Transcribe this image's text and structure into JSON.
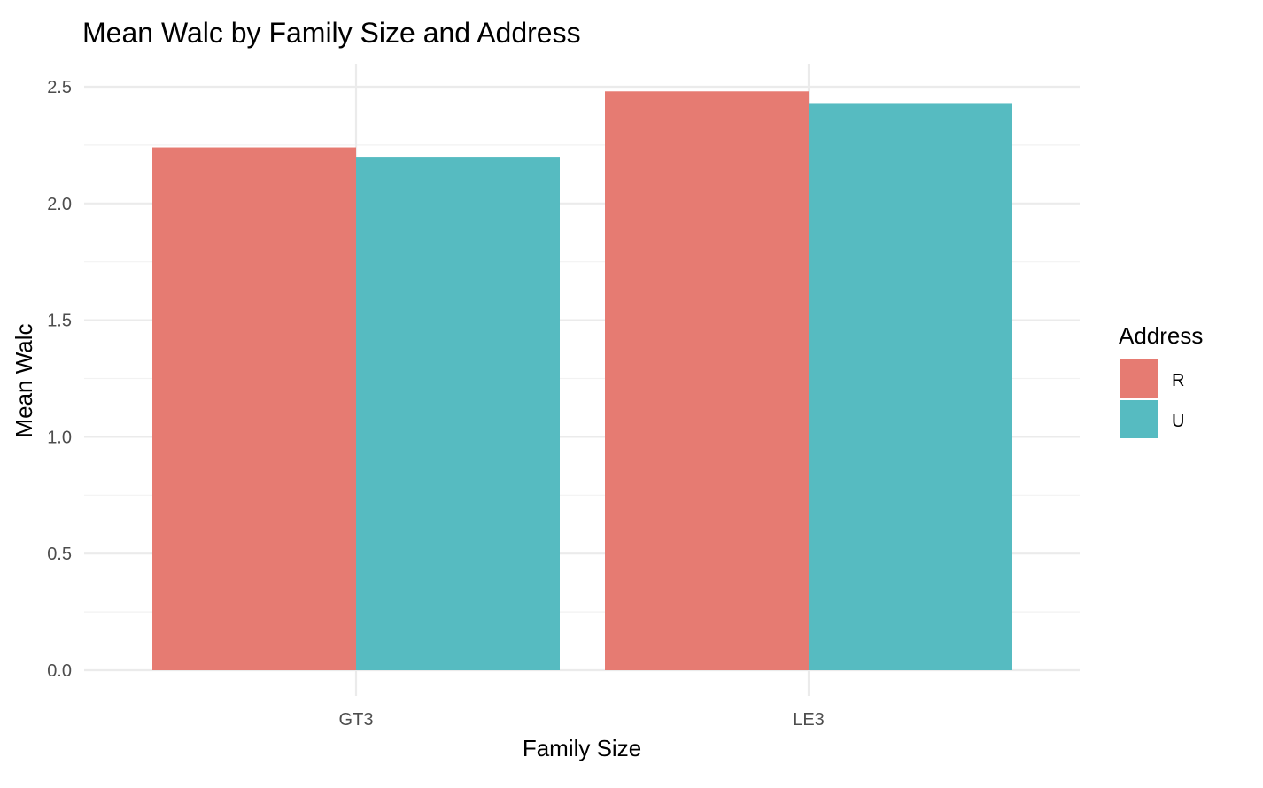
{
  "chart_data": {
    "type": "bar",
    "title": "Mean Walc by Family Size and Address",
    "xlabel": "Family Size",
    "ylabel": "Mean Walc",
    "categories": [
      "GT3",
      "LE3"
    ],
    "series": [
      {
        "name": "R",
        "color": "#E67B72",
        "values": [
          2.24,
          2.48
        ]
      },
      {
        "name": "U",
        "color": "#56BBC1",
        "values": [
          2.2,
          2.43
        ]
      }
    ],
    "ylim": [
      0,
      2.6
    ],
    "yticks": [
      0.0,
      0.5,
      1.0,
      1.5,
      2.0,
      2.5
    ],
    "ytick_labels": [
      "0.0",
      "0.5",
      "1.0",
      "1.5",
      "2.0",
      "2.5"
    ],
    "grid": true,
    "legend": {
      "title": "Address",
      "position": "right",
      "entries": [
        "R",
        "U"
      ]
    }
  }
}
